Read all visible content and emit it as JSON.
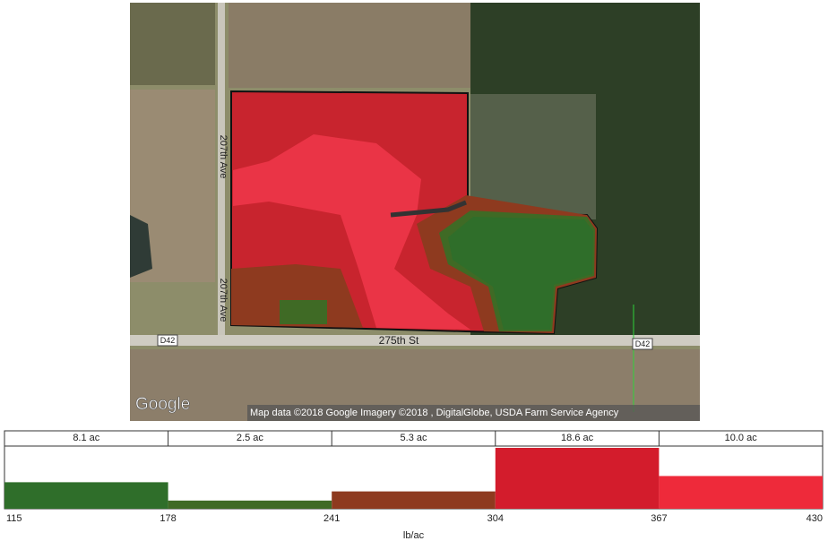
{
  "map": {
    "road_labels": [
      "207th Ave",
      "207th Ave",
      "275th St",
      "D42",
      "D42"
    ],
    "logo": "Google",
    "attribution": "Map data ©2018 Google  Imagery ©2018 , DigitalGlobe, USDA Farm Service Agency"
  },
  "chart_data": {
    "type": "histogram",
    "bins": [
      115,
      178,
      241,
      304,
      367,
      430
    ],
    "values": [
      8.1,
      2.5,
      5.3,
      18.6,
      10.0
    ],
    "value_labels": [
      "8.1 ac",
      "2.5 ac",
      "5.3 ac",
      "18.6 ac",
      "10.0 ac"
    ],
    "colors": [
      "#2f6e2a",
      "#3f6a25",
      "#8e3a1f",
      "#d31c2c",
      "#ee2a3a"
    ],
    "xlabel": "lb/ac"
  }
}
